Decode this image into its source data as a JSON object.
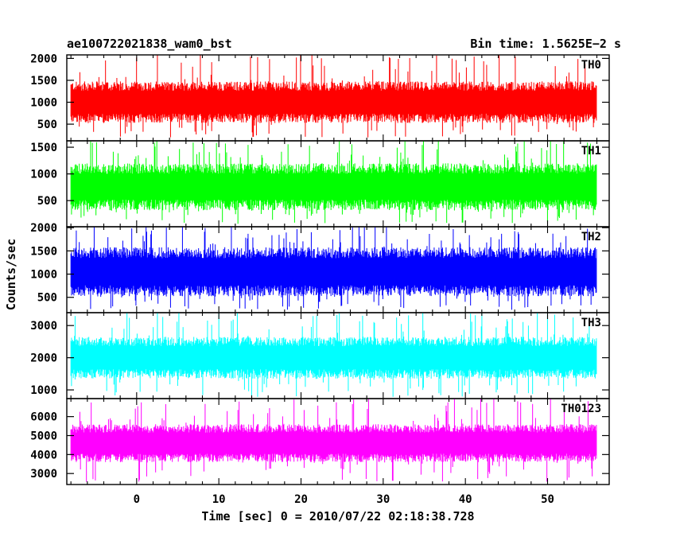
{
  "header": {
    "title": "ae100722021838_wam0_bst",
    "bin_time": "Bin time: 1.5625E−2 s"
  },
  "chart_data": {
    "type": "line",
    "plot_style": "histogram light curve, stacked panels",
    "ylabel": "Counts/sec",
    "xlabel": "Time [sec] 0 = 2010/07/22 02:18:38.728",
    "xlim": [
      -8.5,
      57.5
    ],
    "data_x_range": [
      -8.0,
      56.0
    ],
    "bin_time": 0.015625,
    "x_ticks": [
      0,
      10,
      20,
      30,
      40,
      50
    ],
    "x_tick_labels": [
      "0",
      "10",
      "20",
      "30",
      "40",
      "50"
    ],
    "panels": [
      {
        "name": "TH0",
        "color": "#ff0000",
        "ylim": [
          120,
          2080
        ],
        "y_ticks": [
          500,
          1000,
          1500,
          2000
        ],
        "y_tick_labels": [
          "500",
          "1000",
          "1500",
          "2000"
        ],
        "mean": 1000,
        "band_low": 530,
        "band_high": 1480,
        "peak_low": 190,
        "peak_high": 2200
      },
      {
        "name": "TH1",
        "color": "#00ff00",
        "ylim": [
          10,
          1620
        ],
        "y_ticks": [
          500,
          1000,
          1500
        ],
        "y_tick_labels": [
          "500",
          "1000",
          "1500"
        ],
        "mean": 760,
        "band_low": 320,
        "band_high": 1200,
        "peak_low": 60,
        "peak_high": 1650
      },
      {
        "name": "TH2",
        "color": "#0000ff",
        "ylim": [
          170,
          2020
        ],
        "y_ticks": [
          500,
          1000,
          1500,
          2000
        ],
        "y_tick_labels": [
          "500",
          "1000",
          "1500",
          "2000"
        ],
        "mean": 1050,
        "band_low": 520,
        "band_high": 1580,
        "peak_low": 230,
        "peak_high": 2050
      },
      {
        "name": "TH3",
        "color": "#00ffff",
        "ylim": [
          730,
          3400
        ],
        "y_ticks": [
          1000,
          2000,
          3000
        ],
        "y_tick_labels": [
          "1000",
          "2000",
          "3000"
        ],
        "mean": 2000,
        "band_low": 1350,
        "band_high": 2650,
        "peak_low": 780,
        "peak_high": 3450
      },
      {
        "name": "TH0123",
        "color": "#ff00ff",
        "ylim": [
          2420,
          6950
        ],
        "y_ticks": [
          3000,
          4000,
          5000,
          6000
        ],
        "y_tick_labels": [
          "3000",
          "4000",
          "5000",
          "6000"
        ],
        "mean": 4600,
        "band_low": 3600,
        "band_high": 5600,
        "peak_low": 2500,
        "peak_high": 7000
      }
    ]
  }
}
